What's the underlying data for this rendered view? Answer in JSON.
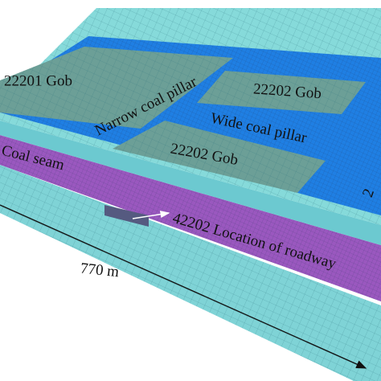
{
  "labels": {
    "gob_22201": "22201 Gob",
    "gob_22202_upper": "22202 Gob",
    "narrow_pillar": "Narrow coal pillar",
    "wide_pillar": "Wide coal pillar",
    "gob_22202_lower": "22202 Gob",
    "coal_seam": "Coal seam",
    "roadway": "42202 Location of roadway",
    "width": "770 m",
    "edge_label": "2"
  }
}
